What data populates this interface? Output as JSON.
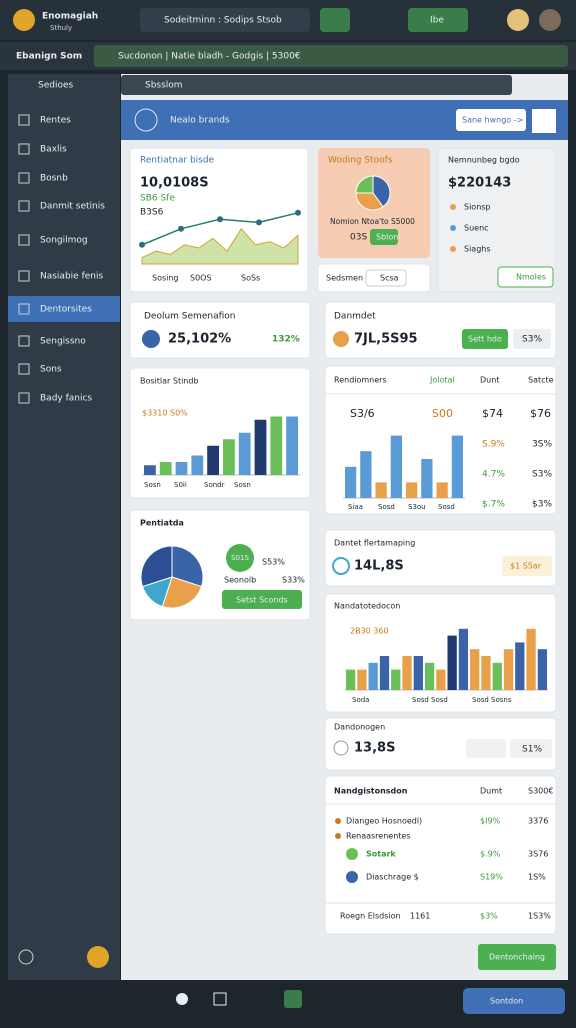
{
  "topbar": {
    "brand": "Enomagiah",
    "brand_sub": "Sthuly",
    "search": "Sodeitminn : Sodips Stsob",
    "button": "Ibe"
  },
  "subbar": {
    "title": "Ebanign Som",
    "breadcrumb": "Sucdonon | Natie bladh - Godgis | 5300€"
  },
  "sidebar": {
    "dropdown": "Sedioes",
    "items": [
      "Rentes",
      "Baxlis",
      "Bosnb",
      "Danmit setinis",
      "Songilmog",
      "Nasiabie fenis",
      "Dentorsites",
      "Sengissno",
      "Sons",
      "Bady fanics"
    ],
    "active": 6
  },
  "search": "Sbsslom",
  "banner": {
    "title": "Nealo brands",
    "button": "Sane hwngo ->"
  },
  "card_line": {
    "title": "Rentiatnar bisde",
    "value": "10,0108S",
    "change": "SB6 Sfe",
    "sub": "B3S6",
    "legend": [
      "Sosing",
      "S0OS",
      "SoSs"
    ],
    "chart": {
      "type": "line",
      "ylim": [
        0,
        10
      ],
      "line": [
        3,
        5.5,
        7,
        6.5,
        8
      ],
      "area": [
        1,
        2,
        1.5,
        3,
        2.5,
        4,
        2,
        5.5,
        3,
        3.5,
        2.5,
        4.5
      ]
    }
  },
  "card_orange": {
    "title": "Woding Stoofs",
    "text": "Nomion Ntoa'to S5000",
    "value": "03S",
    "button": "Sblon",
    "chart": {
      "type": "pie",
      "values": [
        40,
        35,
        25
      ],
      "colors": [
        "#3a63a8",
        "#e8a04a",
        "#6bbf59"
      ]
    }
  },
  "card_small": {
    "label": "Sedsmen",
    "button": "Scsa"
  },
  "card_list": {
    "title": "Nemnunbeg bgdo",
    "value": "$220143",
    "items": [
      "Sionsp",
      "Suenc",
      "Siaghs"
    ],
    "button": "Nmoles"
  },
  "card_stat1": {
    "title": "Deolum Semenafion",
    "value": "25,102%",
    "change": "132%"
  },
  "card_stat2": {
    "title": "Danmdet",
    "value": "7JL,5S95",
    "button": "Sett hdo",
    "change": "S3%"
  },
  "card_bars1": {
    "title": "Bositlar Stindb",
    "sub": "$3310 S0%",
    "legend": [
      "Sosn",
      "S0ii",
      "Sondr",
      "Sosn"
    ],
    "chart": {
      "type": "bar",
      "ylim": [
        0,
        10
      ],
      "values": [
        1.5,
        2,
        2,
        3,
        4.5,
        5.5,
        6.5,
        8.5,
        9,
        9
      ],
      "colors": [
        "#3a63a8",
        "#6bbf59",
        "#5b9bd5",
        "#5b9bd5",
        "#1f3a6e",
        "#6bbf59",
        "#5b9bd5",
        "#1f3a6e",
        "#6bbf59",
        "#5b9bd5"
      ]
    }
  },
  "card_table1": {
    "headers": [
      "Rendiomners",
      "Jolotal",
      "Dunt",
      "Satcte"
    ],
    "row": [
      "S3/6",
      "S00",
      "$74",
      "$76"
    ],
    "side": [
      "S.9%",
      "4.7%",
      "$.7%"
    ],
    "side2": [
      "3S%",
      "S3%",
      "$3%"
    ],
    "labels": [
      "Siaa",
      "Sosd",
      "S3ou",
      "Sosd"
    ],
    "chart": {
      "type": "bar",
      "ylim": [
        0,
        10
      ],
      "values": [
        4,
        6,
        2,
        8,
        2,
        5,
        2,
        8
      ],
      "colors": [
        "#5b9bd5",
        "#5b9bd5",
        "#e8a04a",
        "#5b9bd5",
        "#e8a04a",
        "#5b9bd5",
        "#e8a04a",
        "#5b9bd5"
      ]
    }
  },
  "card_pie": {
    "title": "Pentiatda",
    "badge": "S01S",
    "pct": "S53%",
    "label": "Seonolb",
    "label_pct": "S33%",
    "button": "Setst Sconds",
    "chart": {
      "type": "pie",
      "values": [
        30,
        25,
        15,
        30
      ],
      "colors": [
        "#3a63a8",
        "#e8a04a",
        "#3fa7c9",
        "#2a4f96"
      ]
    }
  },
  "card_stat3": {
    "title": "Dantet flertamaping",
    "value": "14L,8S",
    "button": "$1 S5ar"
  },
  "card_bars2": {
    "title": "Nandatotedocon",
    "sub": "2B30 360",
    "labels": [
      "Soda",
      "Sosd Sosd",
      "Sosd Sosns"
    ],
    "chart": {
      "type": "bar",
      "ylim": [
        0,
        10
      ],
      "values": [
        3,
        3,
        4,
        5,
        3,
        5,
        5,
        4,
        3,
        8,
        9,
        6,
        5,
        4,
        6,
        7,
        9,
        6
      ],
      "colors": [
        "#6bbf59",
        "#e8a04a",
        "#5b9bd5",
        "#3a63a8",
        "#6bbf59",
        "#e8a04a",
        "#3a63a8",
        "#6bbf59",
        "#e8a04a",
        "#1f3a6e",
        "#3a63a8",
        "#e8a04a",
        "#e8a04a",
        "#6bbf59",
        "#e8a04a",
        "#3a63a8",
        "#e8a04a",
        "#3a63a8"
      ]
    }
  },
  "card_stat4": {
    "title": "Dandonogen",
    "value": "13,8S",
    "button": "S1%"
  },
  "card_table2": {
    "title": "Nandgistonsdon",
    "headers": [
      "Dumt",
      "S300€"
    ],
    "rows": [
      [
        "Diangeo Hosnoedl)",
        "$I9%",
        "3376"
      ],
      [
        "Renaasrenentes",
        "",
        ""
      ],
      [
        "Sotark",
        "$.9%",
        "3S76"
      ],
      [
        "Diaschrage $",
        "S19%",
        "1S%"
      ]
    ],
    "footer": [
      "Roegn Elsdsion",
      "1161",
      "$3%",
      "1S3%"
    ]
  },
  "bottom": {
    "cta": "Dentonchaing",
    "button": "Sontdon"
  }
}
